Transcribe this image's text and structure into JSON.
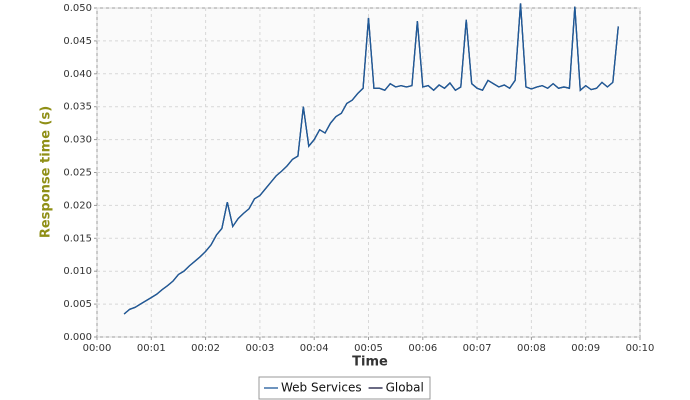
{
  "chart_data": {
    "type": "line",
    "xlabel": "Time",
    "ylabel": "Response time (s)",
    "xlim": [
      0,
      10
    ],
    "xticks": [
      {
        "value": 0,
        "label": "00:00"
      },
      {
        "value": 1,
        "label": "00:01"
      },
      {
        "value": 2,
        "label": "00:02"
      },
      {
        "value": 3,
        "label": "00:03"
      },
      {
        "value": 4,
        "label": "00:04"
      },
      {
        "value": 5,
        "label": "00:05"
      },
      {
        "value": 6,
        "label": "00:06"
      },
      {
        "value": 7,
        "label": "00:07"
      },
      {
        "value": 8,
        "label": "00:08"
      },
      {
        "value": 9,
        "label": "00:09"
      },
      {
        "value": 10,
        "label": "00:10"
      }
    ],
    "ylim": [
      0,
      0.05
    ],
    "yticks": [
      {
        "value": 0,
        "label": "0.000"
      },
      0.005,
      {
        "value": 0.01,
        "label": "0.010"
      },
      0.015,
      {
        "value": 0.02,
        "label": "0.020"
      },
      0.025,
      {
        "value": 0.03,
        "label": "0.030"
      },
      0.035,
      {
        "value": 0.04,
        "label": "0.040"
      },
      0.045,
      {
        "value": 0.05,
        "label": "0.050"
      }
    ],
    "grid": true,
    "legend": "bottom",
    "x": [
      0.5,
      0.6,
      0.7,
      0.8,
      0.9,
      1.0,
      1.1,
      1.2,
      1.3,
      1.4,
      1.5,
      1.6,
      1.7,
      1.8,
      1.9,
      2.0,
      2.1,
      2.2,
      2.3,
      2.4,
      2.5,
      2.6,
      2.7,
      2.8,
      2.9,
      3.0,
      3.1,
      3.2,
      3.3,
      3.4,
      3.5,
      3.6,
      3.7,
      3.8,
      3.9,
      4.0,
      4.1,
      4.2,
      4.3,
      4.4,
      4.5,
      4.6,
      4.7,
      4.8,
      4.9,
      5.0,
      5.1,
      5.2,
      5.3,
      5.4,
      5.5,
      5.6,
      5.7,
      5.8,
      5.9,
      6.0,
      6.1,
      6.2,
      6.3,
      6.4,
      6.5,
      6.6,
      6.7,
      6.8,
      6.9,
      7.0,
      7.1,
      7.2,
      7.3,
      7.4,
      7.5,
      7.6,
      7.7,
      7.8,
      7.9,
      8.0,
      8.1,
      8.2,
      8.3,
      8.4,
      8.5,
      8.6,
      8.7,
      8.8,
      8.9,
      9.0,
      9.1,
      9.2,
      9.3,
      9.4,
      9.5,
      9.6
    ],
    "series": [
      {
        "name": "Global",
        "color": "#1a1a40",
        "values": [
          0.0035,
          0.0042,
          0.0045,
          0.005,
          0.0055,
          0.006,
          0.0065,
          0.0072,
          0.0078,
          0.0085,
          0.0095,
          0.01,
          0.0108,
          0.0115,
          0.0122,
          0.013,
          0.014,
          0.0155,
          0.0165,
          0.0205,
          0.0168,
          0.018,
          0.0188,
          0.0195,
          0.021,
          0.0215,
          0.0225,
          0.0235,
          0.0245,
          0.0252,
          0.026,
          0.027,
          0.0275,
          0.035,
          0.029,
          0.03,
          0.0315,
          0.031,
          0.0325,
          0.0335,
          0.034,
          0.0355,
          0.036,
          0.037,
          0.0378,
          0.0485,
          0.0378,
          0.0378,
          0.0375,
          0.0385,
          0.038,
          0.0382,
          0.038,
          0.0382,
          0.048,
          0.038,
          0.0382,
          0.0375,
          0.0383,
          0.0378,
          0.0386,
          0.0375,
          0.038,
          0.0482,
          0.0385,
          0.0378,
          0.0375,
          0.039,
          0.0385,
          0.038,
          0.0383,
          0.0378,
          0.039,
          0.0507,
          0.038,
          0.0377,
          0.038,
          0.0382,
          0.0378,
          0.0385,
          0.0378,
          0.038,
          0.0378,
          0.0502,
          0.0375,
          0.0382,
          0.0376,
          0.0378,
          0.0387,
          0.038,
          0.0387,
          0.0472
        ]
      },
      {
        "name": "Web Services",
        "color": "#1f5b9a",
        "values": [
          0.0035,
          0.0042,
          0.0045,
          0.005,
          0.0055,
          0.006,
          0.0065,
          0.0072,
          0.0078,
          0.0085,
          0.0095,
          0.01,
          0.0108,
          0.0115,
          0.0122,
          0.013,
          0.014,
          0.0155,
          0.0165,
          0.0205,
          0.0168,
          0.018,
          0.0188,
          0.0195,
          0.021,
          0.0215,
          0.0225,
          0.0235,
          0.0245,
          0.0252,
          0.026,
          0.027,
          0.0275,
          0.035,
          0.029,
          0.03,
          0.0315,
          0.031,
          0.0325,
          0.0335,
          0.034,
          0.0355,
          0.036,
          0.037,
          0.0378,
          0.0485,
          0.0378,
          0.0378,
          0.0375,
          0.0385,
          0.038,
          0.0382,
          0.038,
          0.0382,
          0.048,
          0.038,
          0.0382,
          0.0375,
          0.0383,
          0.0378,
          0.0386,
          0.0375,
          0.038,
          0.0482,
          0.0385,
          0.0378,
          0.0375,
          0.039,
          0.0385,
          0.038,
          0.0383,
          0.0378,
          0.039,
          0.0507,
          0.038,
          0.0377,
          0.038,
          0.0382,
          0.0378,
          0.0385,
          0.0378,
          0.038,
          0.0378,
          0.0502,
          0.0375,
          0.0382,
          0.0376,
          0.0378,
          0.0387,
          0.038,
          0.0387,
          0.0472
        ]
      }
    ]
  }
}
